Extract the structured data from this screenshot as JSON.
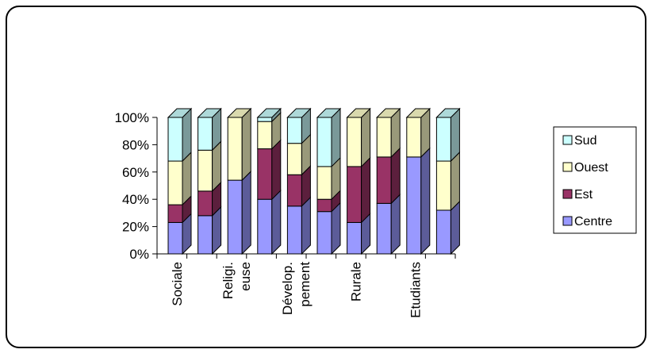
{
  "chart_data": {
    "type": "bar",
    "stacked": "percent",
    "three_d": true,
    "categories": [
      "Sociale",
      "",
      "Religi. euse",
      "",
      "Dévelop. pement",
      "",
      "Rurale",
      "",
      "Etudiants",
      ""
    ],
    "category_label_lines": [
      [
        "Sociale"
      ],
      [],
      [
        "Religi.",
        "euse"
      ],
      [],
      [
        "Dévelop.",
        "pement"
      ],
      [],
      [
        "Rurale"
      ],
      [],
      [
        "Etudiants"
      ],
      []
    ],
    "series": [
      {
        "name": "Centre",
        "color": "#9999ff",
        "values": [
          23,
          28,
          54,
          40,
          35,
          31,
          23,
          37,
          71,
          32
        ]
      },
      {
        "name": "Est",
        "color": "#993366",
        "values": [
          13,
          18,
          0,
          37,
          23,
          9,
          41,
          34,
          0,
          0
        ]
      },
      {
        "name": "Ouest",
        "color": "#ffffcc",
        "values": [
          32,
          30,
          46,
          20,
          23,
          24,
          36,
          29,
          29,
          36
        ]
      },
      {
        "name": "Sud",
        "color": "#ccffff",
        "values": [
          32,
          24,
          0,
          3,
          19,
          36,
          0,
          0,
          0,
          32
        ]
      }
    ],
    "y_ticks": [
      "0%",
      "20%",
      "40%",
      "60%",
      "80%",
      "100%"
    ],
    "ylim": [
      0,
      100
    ],
    "legend_position": "right",
    "legend_order": [
      "Sud",
      "Ouest",
      "Est",
      "Centre"
    ]
  }
}
